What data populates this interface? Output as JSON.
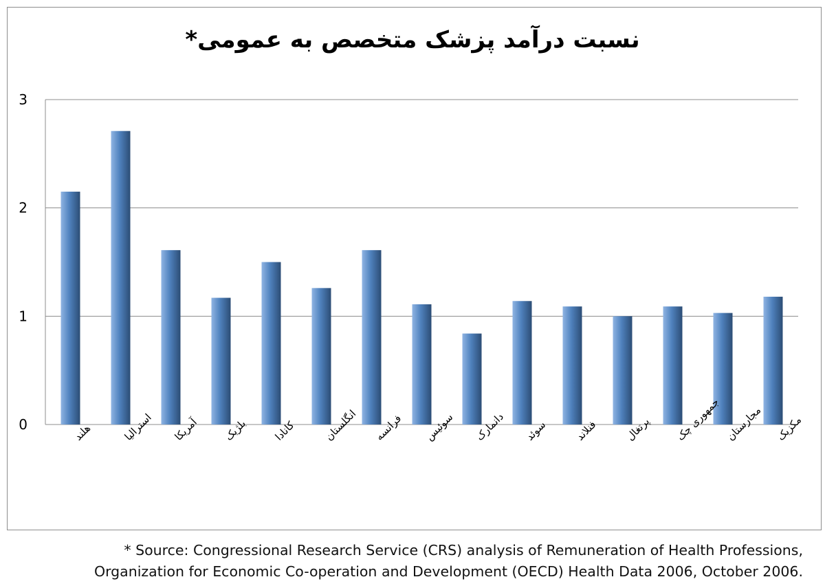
{
  "chart_data": {
    "type": "bar",
    "title": "نسبت درآمد پزشک متخصص به عمومی*",
    "xlabel": "",
    "ylabel": "",
    "ylim": [
      0,
      3
    ],
    "yticks": [
      "0",
      "1",
      "2",
      "3"
    ],
    "grid": true,
    "categories": [
      "هلند",
      "استرالیا",
      "آمریکا",
      "بلژیک",
      "کانادا",
      "انگلستان",
      "فرانسه",
      "سوئیس",
      "دانمارک",
      "سوئد",
      "فنلاند",
      "پرتغال",
      "جمهوری چک",
      "مجارستان",
      "مکزیک"
    ],
    "values": [
      2.15,
      2.71,
      1.61,
      1.17,
      1.5,
      1.26,
      1.61,
      1.11,
      0.84,
      1.14,
      1.09,
      1.0,
      1.09,
      1.03,
      1.18
    ]
  },
  "footnote": {
    "line1": "* Source: Congressional Research Service (CRS) analysis of Remuneration of Health Professions,",
    "line2": "Organization for Economic Co-operation and Development (OECD) Health Data 2006, October 2006."
  },
  "colors": {
    "bar_light": "#8fb4e3",
    "bar_mid": "#4f81bd",
    "bar_dark": "#2c4d75",
    "gridline": "#8c8c8c"
  }
}
